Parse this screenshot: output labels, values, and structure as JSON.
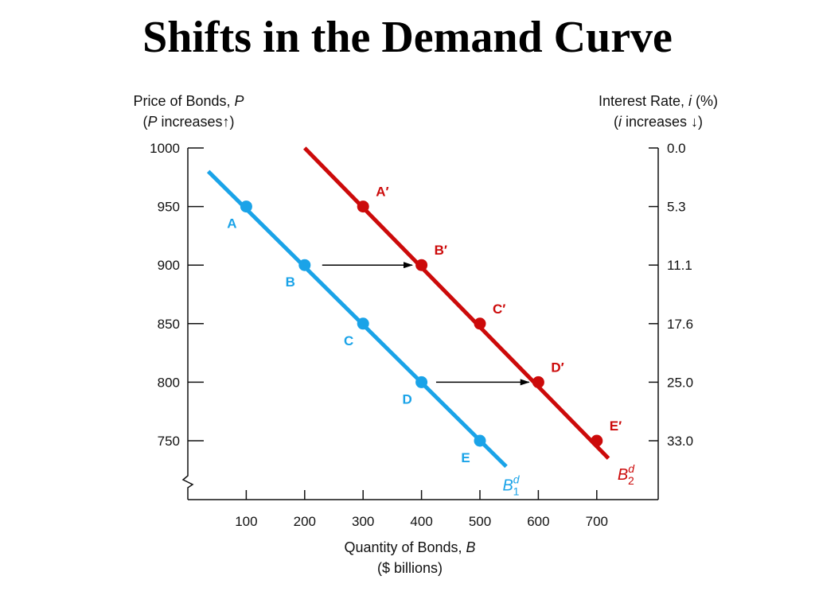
{
  "title": "Shifts in the Demand Curve",
  "chart_data": {
    "type": "line",
    "left_axis": {
      "label_line1": "Price of Bonds, ",
      "label_var": "P",
      "label_line2_pre": "(",
      "label_line2_var": "P",
      "label_line2_post": " increases↑)",
      "ticks": [
        1000,
        950,
        900,
        850,
        800,
        750
      ],
      "range": [
        713,
        1000
      ]
    },
    "right_axis": {
      "label_line1": "Interest Rate, ",
      "label_var": "i",
      "label_unit": " (%)",
      "label_line2_pre": "(",
      "label_line2_var": "i",
      "label_line2_post": " increases ↓)",
      "tick_labels": [
        "0.0",
        "5.3",
        "11.1",
        "17.6",
        "25.0",
        "33.0"
      ]
    },
    "x_axis": {
      "label_line1": "Quantity of Bonds, ",
      "label_var": "B",
      "label_line2": "($ billions)",
      "ticks": [
        100,
        200,
        300,
        400,
        500,
        600,
        700
      ],
      "range": [
        0,
        800
      ]
    },
    "series": [
      {
        "name_base": "B",
        "name_sup": "d",
        "name_sub": "1",
        "color": "#1aa3e8",
        "line": {
          "x": [
            35,
            545
          ],
          "y": [
            980,
            728
          ]
        },
        "points": [
          {
            "label": "A",
            "x": 100,
            "y": 950
          },
          {
            "label": "B",
            "x": 200,
            "y": 900
          },
          {
            "label": "C",
            "x": 300,
            "y": 850
          },
          {
            "label": "D",
            "x": 400,
            "y": 800
          },
          {
            "label": "E",
            "x": 500,
            "y": 750
          }
        ]
      },
      {
        "name_base": "B",
        "name_sup": "d",
        "name_sub": "2",
        "color": "#cc0a0a",
        "line": {
          "x": [
            200,
            720
          ],
          "y": [
            1000,
            735
          ]
        },
        "points": [
          {
            "label": "A′",
            "x": 300,
            "y": 950
          },
          {
            "label": "B′",
            "x": 400,
            "y": 900
          },
          {
            "label": "C′",
            "x": 500,
            "y": 850
          },
          {
            "label": "D′",
            "x": 600,
            "y": 800
          },
          {
            "label": "E′",
            "x": 700,
            "y": 750
          }
        ]
      }
    ],
    "shift_arrows": [
      {
        "y": 900,
        "x_from": 230,
        "x_to": 395
      },
      {
        "y": 800,
        "x_from": 425,
        "x_to": 595
      }
    ],
    "colors": {
      "axis": "#111111",
      "arrow": "#000000"
    }
  }
}
